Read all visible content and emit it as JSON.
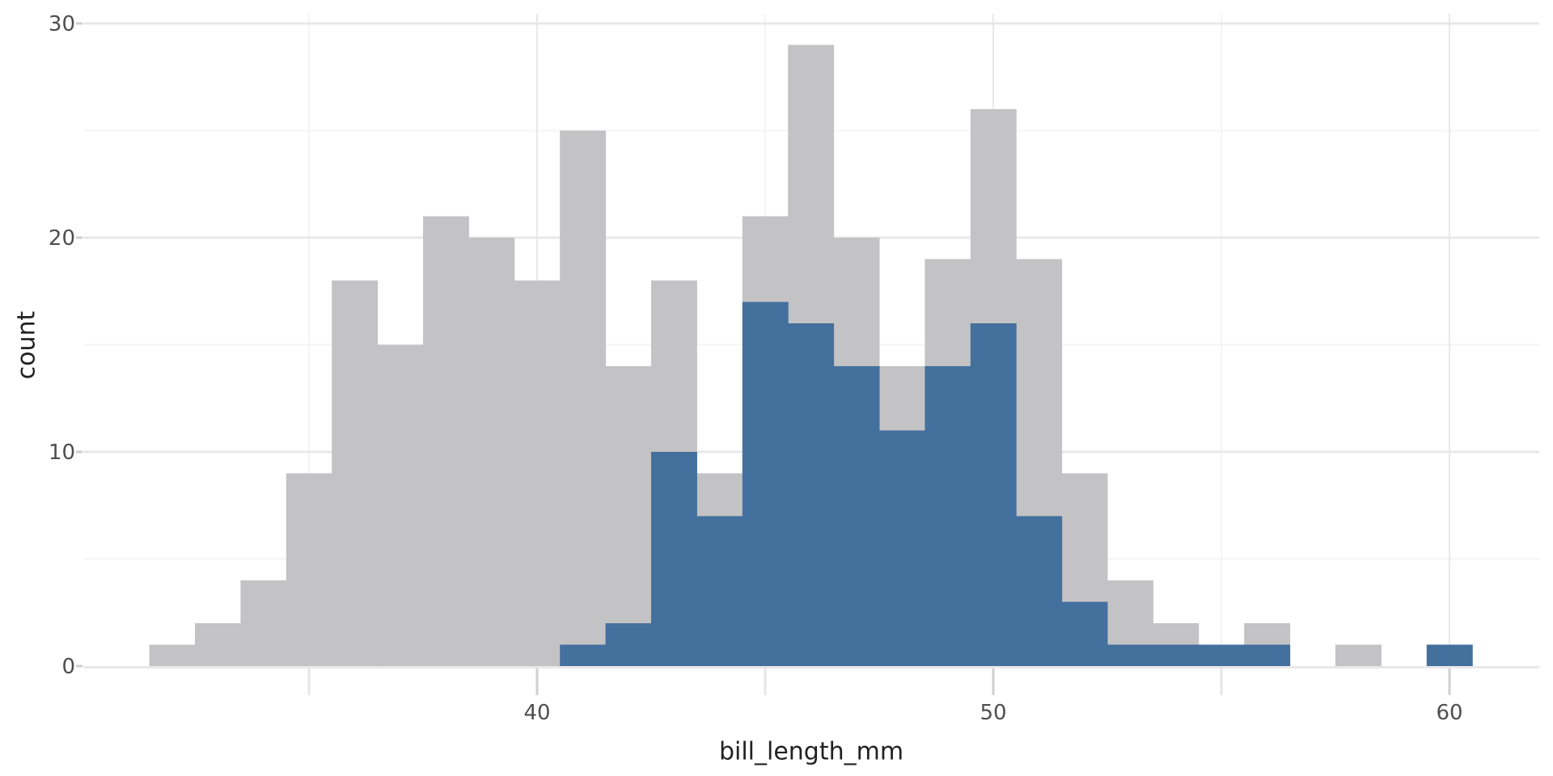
{
  "chart_data": {
    "type": "bar",
    "subtype": "overlaid-histogram",
    "title": "",
    "xlabel": "bill_length_mm",
    "ylabel": "count",
    "bin_width_mm": 1,
    "bin_centers": [
      32,
      33,
      34,
      35,
      36,
      37,
      38,
      39,
      40,
      41,
      42,
      43,
      44,
      45,
      46,
      47,
      48,
      49,
      50,
      51,
      52,
      53,
      54,
      55,
      56,
      57,
      58,
      59,
      60
    ],
    "series": [
      {
        "name": "all-bars",
        "color": "#c3c3c5",
        "counts": [
          1,
          2,
          4,
          9,
          18,
          15,
          21,
          20,
          18,
          25,
          14,
          18,
          9,
          21,
          29,
          20,
          14,
          19,
          26,
          19,
          9,
          4,
          2,
          1,
          2,
          0,
          1,
          0,
          1
        ]
      },
      {
        "name": "highlight-bars",
        "color": "#44709d",
        "counts": [
          0,
          0,
          0,
          0,
          0,
          0,
          0,
          0,
          0,
          1,
          2,
          10,
          7,
          17,
          16,
          14,
          11,
          14,
          16,
          7,
          3,
          1,
          1,
          1,
          1,
          0,
          0,
          0,
          1
        ]
      }
    ],
    "x_ticks": [
      40,
      50,
      60
    ],
    "x_minor_ticks": [
      35,
      45,
      55
    ],
    "y_ticks": [
      0,
      10,
      20,
      30
    ],
    "y_minor_ticks": [
      5,
      15,
      25
    ],
    "xlim": [
      30.05,
      61.95
    ],
    "ylim": [
      0,
      30.45
    ],
    "grid": true,
    "legend": false
  },
  "styles": {
    "background": "#ffffff",
    "grid_major": "#e8e8e8",
    "grid_minor": "#f4f4f4",
    "tick_major": "#cfcfcf",
    "tick_minor": "#e5e5e5",
    "tick_label_color": "#4e4e4e",
    "axis_title_color": "#212121"
  }
}
